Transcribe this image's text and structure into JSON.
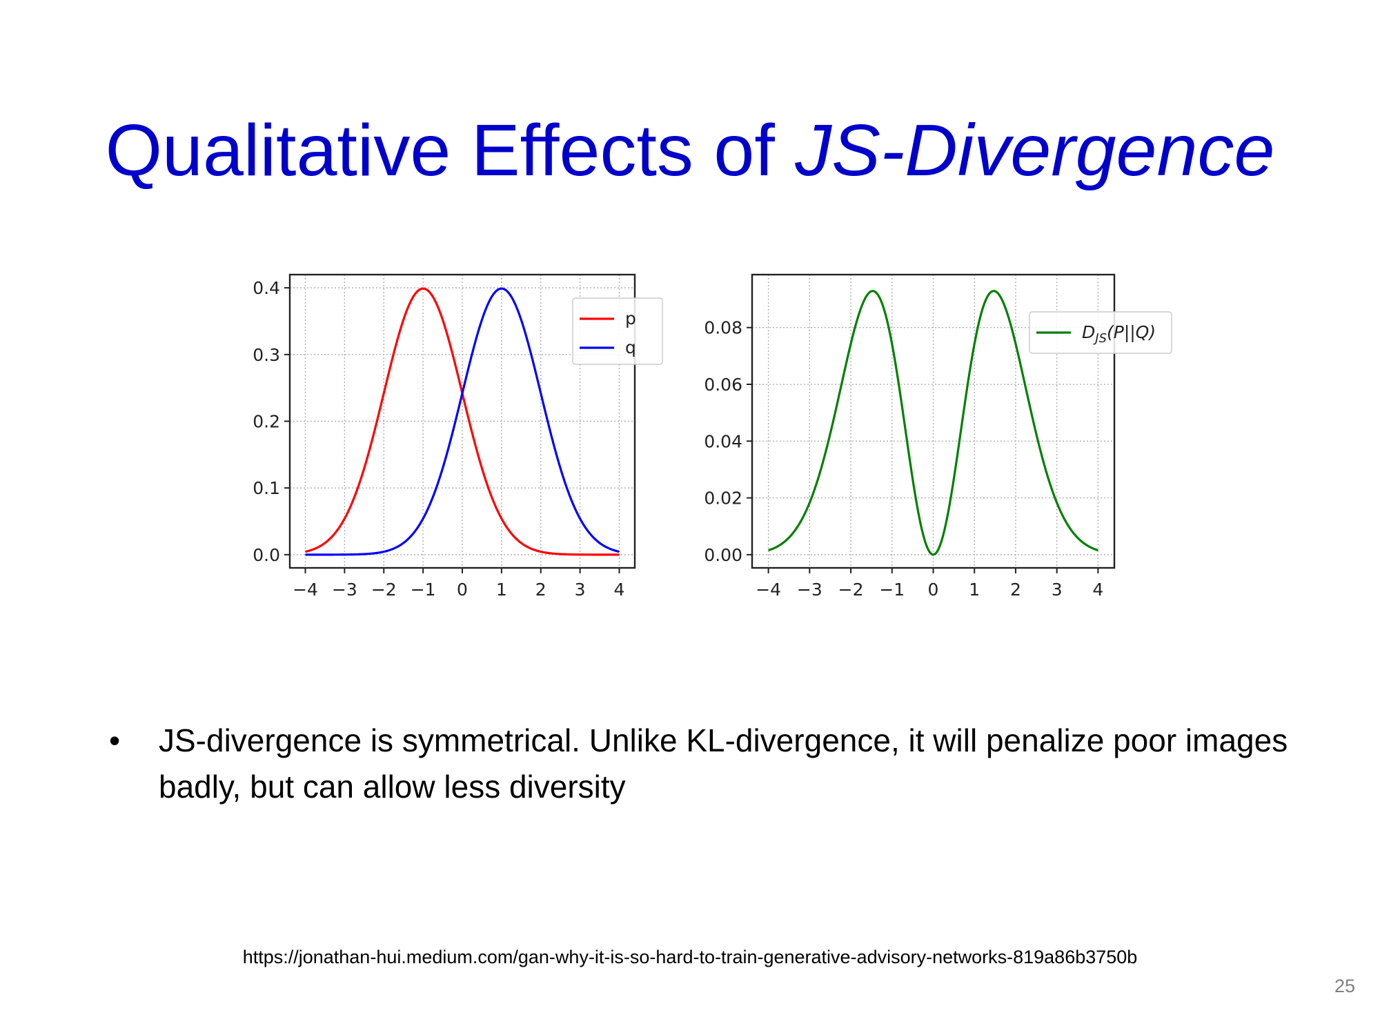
{
  "slide": {
    "title_plain": "Qualitative Effects of ",
    "title_italic": "JS-Divergence",
    "bullet_marker": "•",
    "bullet_text": "JS-divergence is symmetrical. Unlike KL-divergence, it will penalize poor images badly, but can allow less diversity",
    "source_url": "https://jonathan-hui.medium.com/gan-why-it-is-so-hard-to-train-generative-advisory-networks-819a86b3750b",
    "page_number": "25"
  },
  "colors": {
    "title": "#0000cc",
    "p": "#ff0000",
    "q": "#0000ff",
    "djs": "#008000",
    "grid": "#b0b0b0"
  },
  "chart_data": [
    {
      "type": "line",
      "title": "",
      "xlabel": "",
      "ylabel": "",
      "xlim": [
        -4,
        4
      ],
      "ylim": [
        0,
        0.4
      ],
      "xticks": [
        -4,
        -3,
        -2,
        -1,
        0,
        1,
        2,
        3,
        4
      ],
      "xtick_labels": [
        "−4",
        "−3",
        "−2",
        "−1",
        "0",
        "1",
        "2",
        "3",
        "4"
      ],
      "yticks": [
        0.0,
        0.1,
        0.2,
        0.3,
        0.4
      ],
      "ytick_labels": [
        "0.0",
        "0.1",
        "0.2",
        "0.3",
        "0.4"
      ],
      "grid": true,
      "legend_position": "top-right",
      "x": [
        -4,
        -3.5,
        -3,
        -2.5,
        -2,
        -1.5,
        -1,
        -0.5,
        0,
        0.5,
        1,
        1.5,
        2,
        2.5,
        3,
        3.5,
        4
      ],
      "series": [
        {
          "name": "p",
          "color": "#ff0000",
          "values": [
            0.004,
            0.018,
            0.054,
            0.13,
            0.242,
            0.352,
            0.399,
            0.352,
            0.242,
            0.13,
            0.054,
            0.018,
            0.004,
            0.001,
            0.0,
            0.0,
            0.0
          ]
        },
        {
          "name": "q",
          "color": "#0000ff",
          "values": [
            0.0,
            0.0,
            0.0,
            0.001,
            0.004,
            0.018,
            0.054,
            0.13,
            0.242,
            0.352,
            0.399,
            0.352,
            0.242,
            0.13,
            0.054,
            0.018,
            0.004
          ]
        }
      ]
    },
    {
      "type": "line",
      "title": "",
      "xlabel": "",
      "ylabel": "",
      "xlim": [
        -4,
        4
      ],
      "ylim": [
        0,
        0.094
      ],
      "xticks": [
        -4,
        -3,
        -2,
        -1,
        0,
        1,
        2,
        3,
        4
      ],
      "xtick_labels": [
        "−4",
        "−3",
        "−2",
        "−1",
        "0",
        "1",
        "2",
        "3",
        "4"
      ],
      "yticks": [
        0.0,
        0.02,
        0.04,
        0.06,
        0.08
      ],
      "ytick_labels": [
        "0.00",
        "0.02",
        "0.04",
        "0.06",
        "0.08"
      ],
      "grid": true,
      "legend_position": "top-right",
      "x": [
        -4,
        -3.5,
        -3,
        -2.5,
        -2,
        -1.5,
        -1,
        -0.5,
        0,
        0.5,
        1,
        1.5,
        2,
        2.5,
        3,
        3.5,
        4
      ],
      "series": [
        {
          "name": "D_JS(P||Q)",
          "label_main": "D",
          "label_sub": "JS",
          "label_rest": "(P||Q)",
          "color": "#008000",
          "values": [
            0.002,
            0.007,
            0.023,
            0.053,
            0.082,
            0.093,
            0.08,
            0.037,
            0.0,
            0.037,
            0.08,
            0.093,
            0.082,
            0.053,
            0.023,
            0.007,
            0.002
          ]
        }
      ]
    }
  ]
}
